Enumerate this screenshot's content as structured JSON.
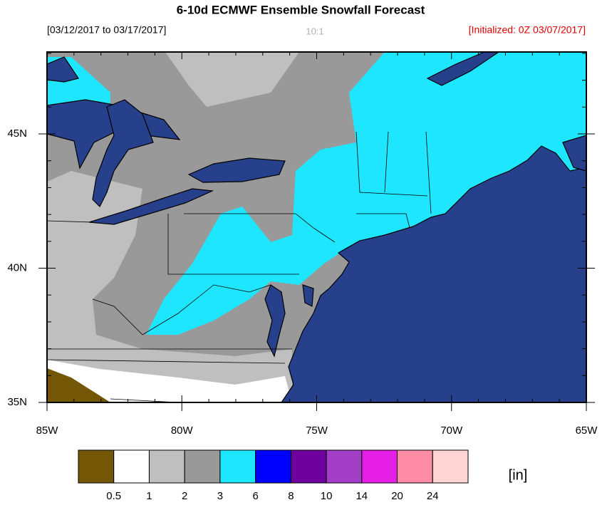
{
  "title": "6-10d ECMWF Ensemble Snowfall Forecast",
  "date_range": "[03/12/2017 to 03/17/2017]",
  "ratio": "10:1",
  "initialized": "[Initialized: 0Z 03/07/2017]",
  "map": {
    "lon_labels": [
      "85W",
      "80W",
      "75W",
      "70W",
      "65W"
    ],
    "lat_labels": [
      "45N",
      "40N",
      "35N"
    ]
  },
  "colorbar": {
    "colors": [
      "#735706",
      "#ffffff",
      "#bfbfbf",
      "#999999",
      "#1ee6ff",
      "#0000ff",
      "#6e009e",
      "#a33ec7",
      "#e61fe6",
      "#ff8ca6",
      "#ffd4d4"
    ],
    "levels": [
      0.5,
      1,
      2,
      3,
      6,
      8,
      10,
      14,
      20,
      24
    ],
    "unit": "[in]"
  }
}
